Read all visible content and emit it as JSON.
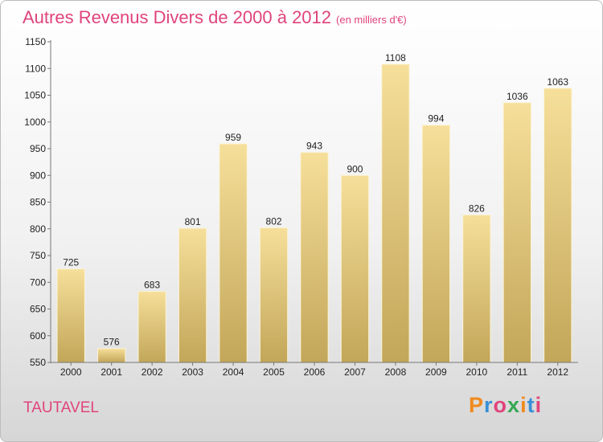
{
  "header": {
    "title": "Autres Revenus Divers de 2000 à 2012",
    "subtitle": "(en milliers d'€)"
  },
  "footer": {
    "commune": "TAUTAVEL",
    "logo": "Proxiti"
  },
  "colors": {
    "title": "#e0447c",
    "bar_top": "#f6df9a",
    "bar_bottom": "#c2a659",
    "logo_letters": [
      "#f08a1d",
      "#3a8fd6",
      "#e0447c",
      "#36a852",
      "#f08a1d",
      "#3a8fd6",
      "#e0447c"
    ]
  },
  "chart_data": {
    "type": "bar",
    "categories": [
      "2000",
      "2001",
      "2002",
      "2003",
      "2004",
      "2005",
      "2006",
      "2007",
      "2008",
      "2009",
      "2010",
      "2011",
      "2012"
    ],
    "values": [
      725,
      576,
      683,
      801,
      959,
      802,
      943,
      900,
      1108,
      994,
      826,
      1036,
      1063
    ],
    "title": "Autres Revenus Divers de 2000 à 2012",
    "subtitle": "(en milliers d'€)",
    "xlabel": "",
    "ylabel": "",
    "ylim": [
      550,
      1150
    ],
    "yticks": [
      550,
      600,
      650,
      700,
      750,
      800,
      850,
      900,
      950,
      1000,
      1050,
      1100,
      1150
    ],
    "grid": false,
    "legend": "none"
  }
}
